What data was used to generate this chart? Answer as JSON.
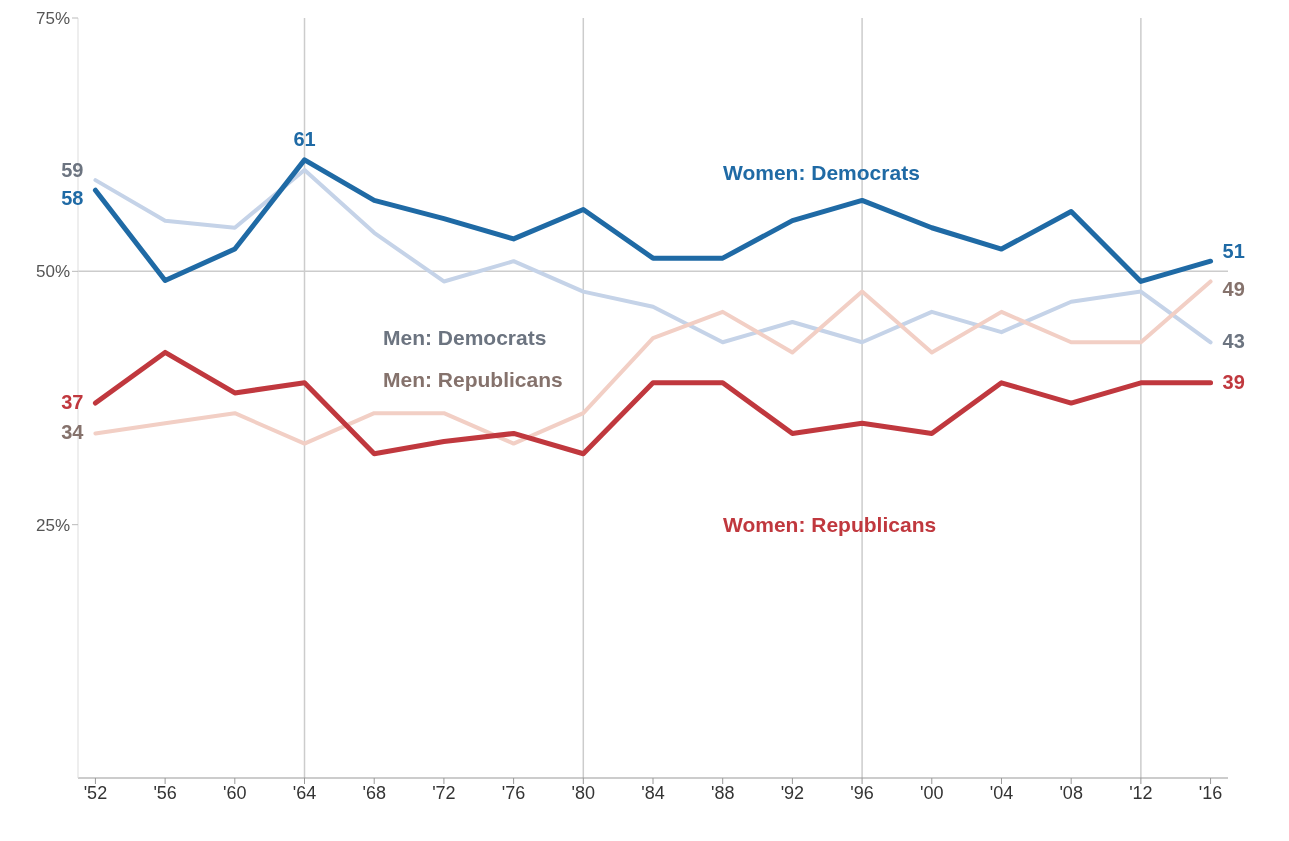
{
  "chart_data": {
    "type": "line",
    "x": [
      1952,
      1956,
      1960,
      1964,
      1968,
      1972,
      1976,
      1980,
      1984,
      1988,
      1992,
      1996,
      2000,
      2004,
      2008,
      2012,
      2016
    ],
    "series": [
      {
        "name": "Men: Democrats",
        "color": "#c5d3e8",
        "values": [
          59,
          55,
          54.3,
          60,
          53.8,
          49,
          51,
          48,
          46.5,
          43,
          45,
          43,
          46,
          44,
          47,
          48,
          43
        ],
        "value_labels": [
          "59",
          null,
          null,
          null,
          null,
          null,
          null,
          null,
          null,
          null,
          null,
          null,
          null,
          null,
          null,
          null,
          "43"
        ]
      },
      {
        "name": "Men: Republicans",
        "color": "#f2cfc5",
        "values": [
          34,
          35,
          36,
          33,
          36,
          36,
          33,
          36,
          43.4,
          46,
          42,
          48,
          42,
          46,
          43,
          43,
          49
        ],
        "value_labels": [
          "34",
          null,
          null,
          null,
          null,
          null,
          null,
          null,
          null,
          null,
          null,
          null,
          null,
          null,
          null,
          null,
          "49"
        ]
      },
      {
        "name": "Women: Democrats",
        "color": "#1f6aa5",
        "values": [
          58,
          49.1,
          52.2,
          61,
          57,
          55.2,
          53.2,
          56.1,
          51.3,
          51.3,
          55,
          57,
          54.3,
          52.2,
          55.9,
          49,
          51
        ],
        "value_labels": [
          "58",
          null,
          null,
          "61",
          null,
          null,
          null,
          null,
          null,
          null,
          null,
          null,
          null,
          null,
          null,
          null,
          "51"
        ]
      },
      {
        "name": "Women: Republicans",
        "color": "#c0383e",
        "values": [
          37,
          42,
          38,
          39,
          32,
          33.2,
          34,
          32,
          39,
          39,
          34,
          35,
          34,
          39,
          37,
          39,
          39
        ],
        "value_labels": [
          "37",
          null,
          null,
          null,
          null,
          null,
          null,
          null,
          null,
          null,
          null,
          null,
          null,
          null,
          null,
          null,
          "39"
        ]
      }
    ],
    "xlim": [
      1951,
      2017
    ],
    "xticks": [
      {
        "value": 1952,
        "label": "'52"
      },
      {
        "value": 1956,
        "label": "'56"
      },
      {
        "value": 1960,
        "label": "'60"
      },
      {
        "value": 1964,
        "label": "'64"
      },
      {
        "value": 1968,
        "label": "'68"
      },
      {
        "value": 1972,
        "label": "'72"
      },
      {
        "value": 1976,
        "label": "'76"
      },
      {
        "value": 1980,
        "label": "'80"
      },
      {
        "value": 1984,
        "label": "'84"
      },
      {
        "value": 1988,
        "label": "'88"
      },
      {
        "value": 1992,
        "label": "'92"
      },
      {
        "value": 1996,
        "label": "'96"
      },
      {
        "value": 2000,
        "label": "'00"
      },
      {
        "value": 2004,
        "label": "'04"
      },
      {
        "value": 2008,
        "label": "'08"
      },
      {
        "value": 2012,
        "label": "'12"
      },
      {
        "value": 2016,
        "label": "'16"
      }
    ],
    "ylim": [
      0,
      75
    ],
    "yticks": [
      {
        "value": 25,
        "label": "25%"
      },
      {
        "value": 50,
        "label": "50%"
      },
      {
        "value": 75,
        "label": "75%"
      }
    ],
    "ref_lines": [
      {
        "axis": "x",
        "value": 1964,
        "color": "#cccccc"
      },
      {
        "axis": "x",
        "value": 1980,
        "color": "#cccccc"
      },
      {
        "axis": "x",
        "value": 1996,
        "color": "#cccccc"
      },
      {
        "axis": "x",
        "value": 2012,
        "color": "#cccccc"
      },
      {
        "axis": "y",
        "value": 50,
        "color": "#cccccc"
      }
    ],
    "grid": false,
    "marker": "none",
    "line_style": "solid"
  }
}
